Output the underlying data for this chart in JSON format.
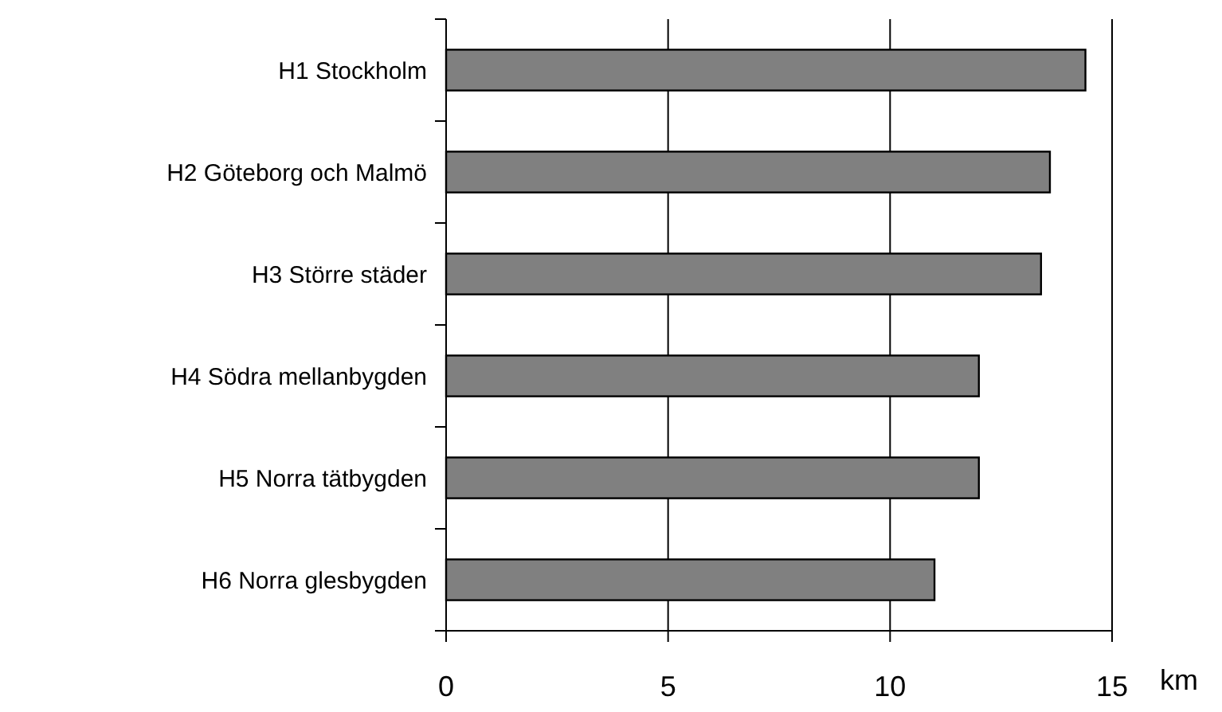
{
  "chart_data": {
    "type": "bar",
    "orientation": "horizontal",
    "categories": [
      "H1 Stockholm",
      "H2 Göteborg och Malmö",
      "H3 Större städer",
      "H4 Södra mellanbygden",
      "H5 Norra tätbygden",
      "H6 Norra glesbygden"
    ],
    "values": [
      14.4,
      13.6,
      13.4,
      12.0,
      12.0,
      11.0
    ],
    "color": "#808080",
    "xlabel": "km",
    "xlim": [
      0,
      15
    ],
    "xticks": [
      0,
      5,
      10,
      15
    ],
    "grid": "x"
  }
}
